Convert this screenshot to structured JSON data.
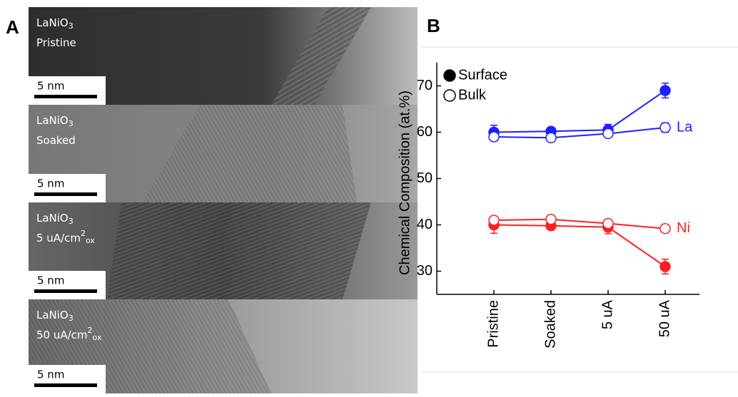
{
  "panel_a": {
    "label": "A",
    "images": [
      {
        "formula": {
          "main": "LaNiO",
          "sub": "3"
        },
        "condition": {
          "main": "Pristine"
        },
        "scale": "5 nm"
      },
      {
        "formula": {
          "main": "LaNiO",
          "sub": "3"
        },
        "condition": {
          "main": "Soaked"
        },
        "scale": "5 nm"
      },
      {
        "formula": {
          "main": "LaNiO",
          "sub": "3"
        },
        "condition": {
          "main": "5 uA/cm",
          "sup": "2",
          "sub": "ox"
        },
        "scale": "5 nm"
      },
      {
        "formula": {
          "main": "LaNiO",
          "sub": "3"
        },
        "condition": {
          "main": "50 uA/cm",
          "sup": "2",
          "sub": "ox"
        },
        "scale": "5 nm"
      }
    ]
  },
  "chart_data": {
    "type": "line",
    "panel_label": "B",
    "y_label": "Chemical Composition (at.%)",
    "categories": [
      "Pristine",
      "Soaked",
      "5 uA",
      "50 uA"
    ],
    "ylim": [
      25,
      75
    ],
    "yticks": [
      30,
      40,
      50,
      60,
      70
    ],
    "series": [
      {
        "name": "Surface",
        "label": "La",
        "color": "#1f1fff",
        "filled": true,
        "values": [
          60,
          60.2,
          60.5,
          69
        ],
        "errors": [
          1.5,
          0.8,
          1.2,
          1.6
        ]
      },
      {
        "name": "Bulk",
        "label": "La",
        "color": "#1f1fff",
        "filled": false,
        "values": [
          59,
          58.8,
          59.7,
          61
        ],
        "errors": [
          0.8,
          0.8,
          0.8,
          1.0
        ]
      },
      {
        "name": "Surface",
        "label": "Ni",
        "color": "#ff1f1f",
        "filled": true,
        "values": [
          40,
          39.8,
          39.5,
          31
        ],
        "errors": [
          1.8,
          0.8,
          1.4,
          1.6
        ]
      },
      {
        "name": "Bulk",
        "label": "Ni",
        "color": "#ff1f1f",
        "filled": false,
        "values": [
          41,
          41.2,
          40.3,
          39.2
        ],
        "errors": [
          0.8,
          0.8,
          0.8,
          0.8
        ]
      }
    ],
    "legend": [
      0,
      1
    ]
  }
}
